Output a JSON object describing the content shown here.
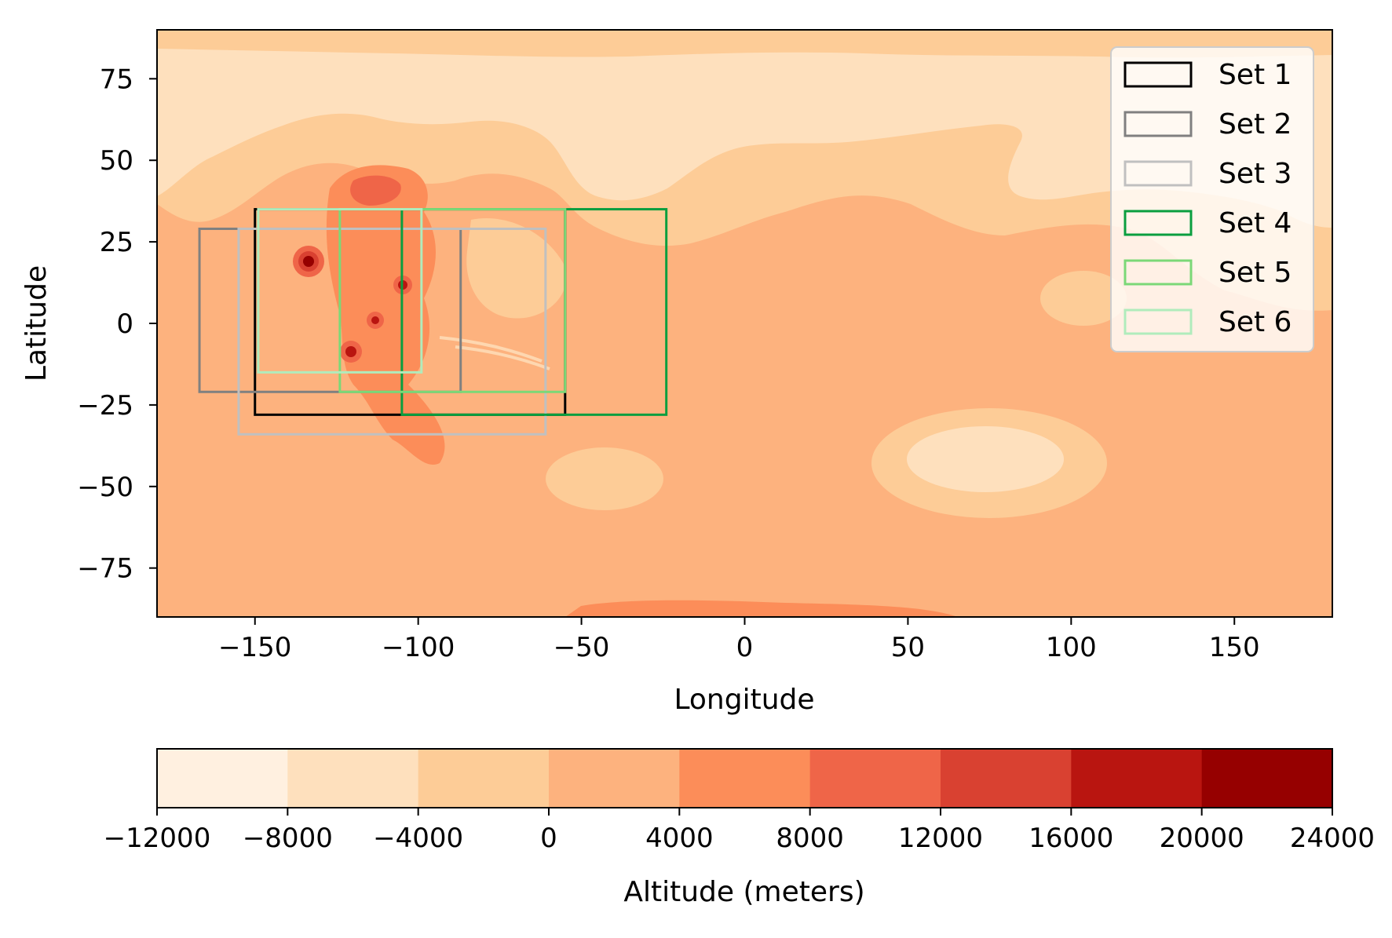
{
  "chart_data": {
    "type": "heatmap",
    "title": "",
    "xlabel": "Longitude",
    "ylabel": "Latitude",
    "xlim": [
      -180,
      180
    ],
    "ylim": [
      -90,
      90
    ],
    "xticks": [
      -150,
      -100,
      -50,
      0,
      50,
      100,
      150
    ],
    "yticks": [
      75,
      50,
      25,
      0,
      -25,
      -50,
      -75
    ],
    "grid": false,
    "legend_position": "top-right",
    "colorbar": {
      "label": "Altitude (meters)",
      "levels": [
        -12000,
        -8000,
        -4000,
        0,
        4000,
        8000,
        12000,
        16000,
        20000,
        24000
      ],
      "colors": [
        "#fff0e0",
        "#fee0bd",
        "#fdcc97",
        "#fdb27e",
        "#fc8d59",
        "#ef6548",
        "#d94131",
        "#b91510",
        "#960000"
      ]
    },
    "boxes": [
      {
        "name": "Set 1",
        "color": "#000000",
        "lon": [
          -150,
          -55
        ],
        "lat": [
          -28,
          35
        ]
      },
      {
        "name": "Set 2",
        "color": "#808080",
        "lon": [
          -167,
          -87
        ],
        "lat": [
          -21,
          29
        ]
      },
      {
        "name": "Set 3",
        "color": "#c0c0c0",
        "lon": [
          -155,
          -61
        ],
        "lat": [
          -34,
          29
        ]
      },
      {
        "name": "Set 4",
        "color": "#0a9e3f",
        "lon": [
          -105,
          -24
        ],
        "lat": [
          -28,
          35
        ]
      },
      {
        "name": "Set 5",
        "color": "#7bd877",
        "lon": [
          -124,
          -55
        ],
        "lat": [
          -21,
          35
        ]
      },
      {
        "name": "Set 6",
        "color": "#b0ecbc",
        "lon": [
          -149,
          -99
        ],
        "lat": [
          -15,
          35
        ]
      }
    ]
  }
}
